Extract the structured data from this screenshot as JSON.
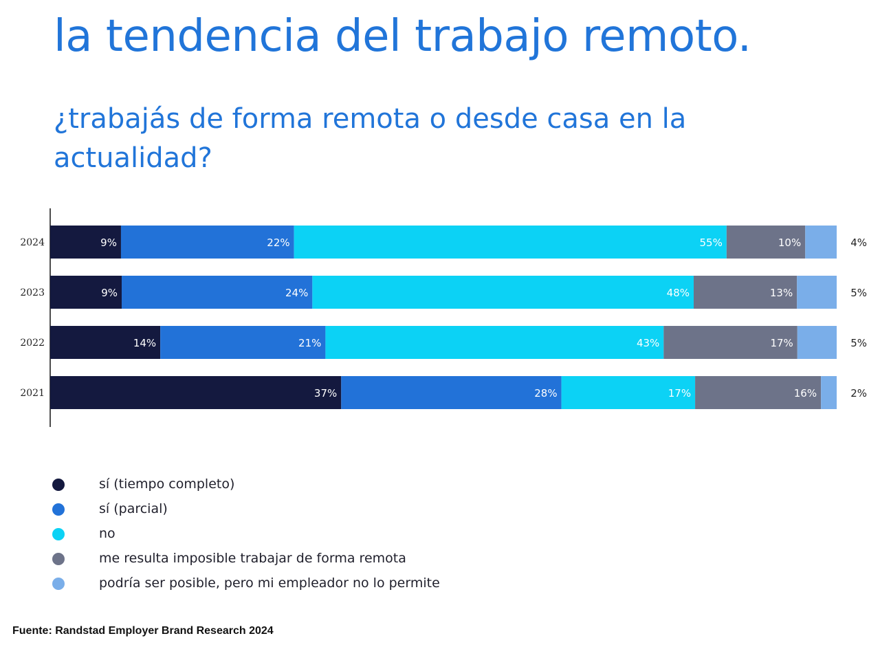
{
  "title": "la tendencia del trabajo remoto.",
  "subtitle": "¿trabajás de forma remota o desde casa en la actualidad?",
  "source": "Fuente: Randstad Employer Brand Research 2024",
  "chart_data": {
    "type": "bar",
    "orientation": "horizontal",
    "stacked": true,
    "categories": [
      "2024",
      "2023",
      "2022",
      "2021"
    ],
    "series": [
      {
        "name": "sí (tiempo completo)",
        "color": "#14193f",
        "values": [
          9,
          9,
          14,
          37
        ],
        "labels": [
          "9%",
          "9%",
          "14%",
          "37%"
        ]
      },
      {
        "name": "sí (parcial)",
        "color": "#2272d8",
        "values": [
          22,
          24,
          21,
          28
        ],
        "labels": [
          "22%",
          "24%",
          "21%",
          "28%"
        ]
      },
      {
        "name": "no",
        "color": "#0cd2f5",
        "values": [
          55,
          48,
          43,
          17
        ],
        "labels": [
          "55%",
          "48%",
          "43%",
          "17%"
        ]
      },
      {
        "name": "me resulta imposible trabajar de forma remota",
        "color": "#6d7389",
        "values": [
          10,
          13,
          17,
          16
        ],
        "labels": [
          "10%",
          "13%",
          "17%",
          "16%"
        ]
      },
      {
        "name": "podría ser posible, pero mi empleador no lo permite",
        "color": "#7aaee9",
        "values": [
          4,
          5,
          5,
          2
        ],
        "labels": [
          "4%",
          "5%",
          "5%",
          "2%"
        ]
      }
    ],
    "value_label_color": "#ffffff",
    "outside_label_series_index": 4,
    "legend_position": "bottom-left",
    "grid": false
  }
}
